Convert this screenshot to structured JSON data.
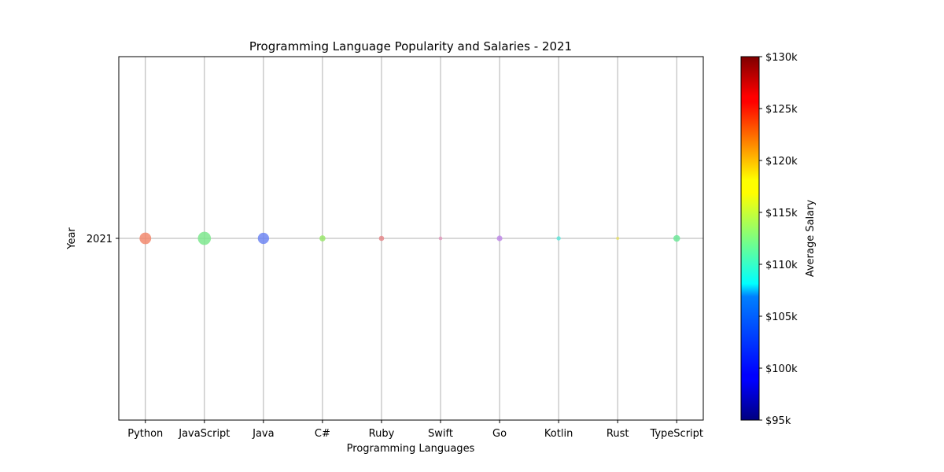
{
  "chart_data": {
    "type": "scatter",
    "title": "Programming Language Popularity and Salaries - 2021",
    "xlabel": "Programming Languages",
    "ylabel": "Year",
    "categories": [
      "Python",
      "JavaScript",
      "Java",
      "C#",
      "Ruby",
      "Swift",
      "Go",
      "Kotlin",
      "Rust",
      "TypeScript"
    ],
    "y_ticks": [
      "2021"
    ],
    "series": [
      {
        "points": [
          {
            "x": "Python",
            "y": "2021",
            "salary": 123000,
            "popularity": 30,
            "color": "#f28a6e"
          },
          {
            "x": "JavaScript",
            "y": "2021",
            "salary": 112000,
            "popularity": 38,
            "color": "#7ee88e"
          },
          {
            "x": "Java",
            "y": "2021",
            "salary": 102000,
            "popularity": 28,
            "color": "#6f86f2"
          },
          {
            "x": "C#",
            "y": "2021",
            "salary": 113500,
            "popularity": 8,
            "color": "#9be86e"
          },
          {
            "x": "Ruby",
            "y": "2021",
            "salary": 127000,
            "popularity": 6,
            "color": "#e58a8c"
          },
          {
            "x": "Swift",
            "y": "2021",
            "salary": 126000,
            "popularity": 3,
            "color": "#e29bbd"
          },
          {
            "x": "Go",
            "y": "2021",
            "salary": 129000,
            "popularity": 7,
            "color": "#c08ae8"
          },
          {
            "x": "Kotlin",
            "y": "2021",
            "salary": 107500,
            "popularity": 4,
            "color": "#63e6dc"
          },
          {
            "x": "Rust",
            "y": "2021",
            "salary": 118000,
            "popularity": 1,
            "color": "#e8e06e"
          },
          {
            "x": "TypeScript",
            "y": "2021",
            "salary": 111000,
            "popularity": 10,
            "color": "#6ee89a"
          }
        ]
      }
    ],
    "colorbar": {
      "label": "Average Salary",
      "min": 95000,
      "max": 130000,
      "ticks": [
        "$95k",
        "$100k",
        "$105k",
        "$110k",
        "$115k",
        "$120k",
        "$125k",
        "$130k"
      ],
      "colormap": "jet"
    },
    "grid": true
  }
}
